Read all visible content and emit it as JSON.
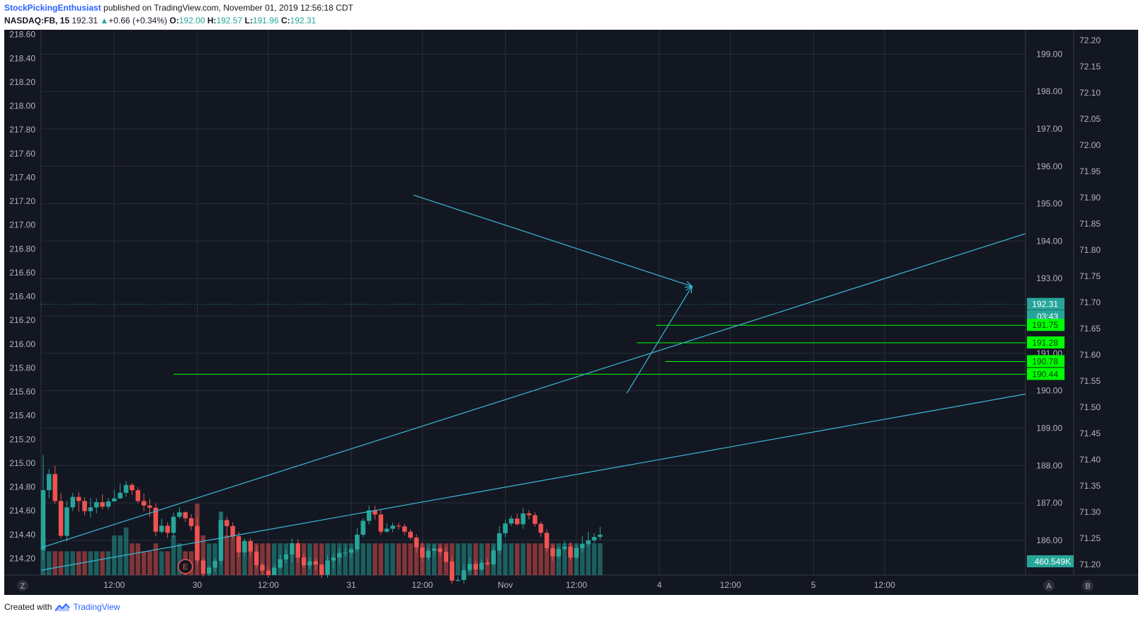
{
  "header": {
    "author": "StockPickingEnthusiast",
    "published": "published on TradingView.com, November 01, 2019 12:56:18 CDT",
    "symbol": "NASDAQ:FB, 15",
    "last": "192.31",
    "change_arrow": "▲",
    "change": "+0.66 (+0.34%)",
    "o_label": "O:",
    "o": "192.00",
    "h_label": "H:",
    "h": "192.57",
    "l_label": "L:",
    "l": "191.96",
    "c_label": "C:",
    "c": "192.31"
  },
  "footer": {
    "created": "Created with",
    "brand": "TradingView",
    "logo_icon": "tradingview-logo-icon"
  },
  "colors": {
    "background": "#131722",
    "up": "#26a69a",
    "down": "#ef5350",
    "trend": "#3bbad6",
    "level": "#00ff00",
    "grid": "#2a2e39",
    "axis_text": "#b2b5be"
  },
  "chart_data": {
    "type": "candlestick",
    "y_left": {
      "ticks": [
        "214.20",
        "214.40",
        "214.60",
        "214.80",
        "215.00",
        "215.20",
        "215.40",
        "215.60",
        "215.80",
        "216.00",
        "216.20",
        "216.40",
        "216.60",
        "216.80",
        "217.00",
        "217.20",
        "217.40",
        "217.60",
        "217.80",
        "218.00",
        "218.20",
        "218.40",
        "218.60"
      ],
      "range": [
        214.06,
        218.64
      ]
    },
    "y_right_main": {
      "ticks": [
        "186.00",
        "187.00",
        "188.00",
        "189.00",
        "190.00",
        "191.00",
        "192.00",
        "193.00",
        "194.00",
        "195.00",
        "196.00",
        "197.00",
        "198.00",
        "199.00"
      ],
      "range": [
        185.07,
        199.65
      ]
    },
    "y_right_secondary": {
      "ticks": [
        "71.20",
        "71.25",
        "71.30",
        "71.35",
        "71.40",
        "71.45",
        "71.50",
        "71.55",
        "71.60",
        "71.65",
        "71.70",
        "71.75",
        "71.80",
        "71.85",
        "71.90",
        "71.95",
        "72.00",
        "72.05",
        "72.10",
        "72.15",
        "72.20"
      ],
      "range": [
        71.18,
        72.22
      ]
    },
    "x_ticks": [
      {
        "label": "12:00",
        "t": 12
      },
      {
        "label": "30",
        "t": 26
      },
      {
        "label": "12:00",
        "t": 38
      },
      {
        "label": "31",
        "t": 52
      },
      {
        "label": "12:00",
        "t": 64
      },
      {
        "label": "Nov",
        "t": 78
      },
      {
        "label": "12:00",
        "t": 90
      },
      {
        "label": "4",
        "t": 104
      },
      {
        "label": "12:00",
        "t": 116
      },
      {
        "label": "5",
        "t": 130
      },
      {
        "label": "12:00",
        "t": 142
      }
    ],
    "x_range": [
      -0.35,
      165.8
    ],
    "candles": [
      [
        185.74,
        187.34,
        185.49,
        188.28,
        0.5
      ],
      [
        187.34,
        187.77,
        187.12,
        187.9,
        0.3
      ],
      [
        187.77,
        187.05,
        186.98,
        187.99,
        0.3
      ],
      [
        187.05,
        186.12,
        186.05,
        187.27,
        0.3
      ],
      [
        186.12,
        186.88,
        185.96,
        187.05,
        0.3
      ],
      [
        186.88,
        187.16,
        186.78,
        187.27,
        0.3
      ],
      [
        187.16,
        187.05,
        186.76,
        187.29,
        0.3
      ],
      [
        187.05,
        186.78,
        186.67,
        187.15,
        0.3
      ],
      [
        186.78,
        186.88,
        186.61,
        187.13,
        0.3
      ],
      [
        186.88,
        187.02,
        186.72,
        187.12,
        0.3
      ],
      [
        187.02,
        186.9,
        186.83,
        187.23,
        0.3
      ],
      [
        186.9,
        187.04,
        186.82,
        187.13,
        0.3
      ],
      [
        187.04,
        187.12,
        187.07,
        187.35,
        0.5
      ],
      [
        187.12,
        187.27,
        187.16,
        187.52,
        0.5
      ],
      [
        187.27,
        187.48,
        187.17,
        187.59,
        0.6
      ],
      [
        187.48,
        187.34,
        187.22,
        187.53,
        0.4
      ],
      [
        187.34,
        187.05,
        186.99,
        187.42,
        0.4
      ],
      [
        187.05,
        186.93,
        186.78,
        187.25,
        0.3
      ],
      [
        186.93,
        186.87,
        186.63,
        187.1,
        0.3
      ],
      [
        186.87,
        186.23,
        186.11,
        186.99,
        0.4
      ],
      [
        186.23,
        186.39,
        186.18,
        186.58,
        0.3
      ],
      [
        186.39,
        186.2,
        186.06,
        186.48,
        0.3
      ],
      [
        186.2,
        186.63,
        186.06,
        186.74,
        0.5
      ],
      [
        186.63,
        186.75,
        186.58,
        186.88,
        0.4
      ],
      [
        186.75,
        186.59,
        186.49,
        186.77,
        0.3
      ],
      [
        186.59,
        186.38,
        186.27,
        186.7,
        0.3
      ],
      [
        186.38,
        185.46,
        185.34,
        186.62,
        0.9
      ],
      [
        185.46,
        185.11,
        185.03,
        185.52,
        0.5
      ],
      [
        185.11,
        185.27,
        185.04,
        185.32,
        0.4
      ],
      [
        185.27,
        185.45,
        185.16,
        185.52,
        0.4
      ],
      [
        185.45,
        186.54,
        185.35,
        186.76,
        0.8
      ],
      [
        186.54,
        186.38,
        186.08,
        186.63,
        0.5
      ],
      [
        186.38,
        186.11,
        186.04,
        186.48,
        0.5
      ],
      [
        186.11,
        185.68,
        185.55,
        186.23,
        0.4
      ],
      [
        185.68,
        185.98,
        185.58,
        186.05,
        0.4
      ],
      [
        185.98,
        185.7,
        185.57,
        186.05,
        0.4
      ],
      [
        185.7,
        185.34,
        185.27,
        185.87,
        0.4
      ],
      [
        185.34,
        185.19,
        185.09,
        185.39,
        0.4
      ],
      [
        185.19,
        185.07,
        185.0,
        185.29,
        0.4
      ],
      [
        185.07,
        185.27,
        185.09,
        185.36,
        0.4
      ],
      [
        185.27,
        185.49,
        185.24,
        185.62,
        0.4
      ],
      [
        185.49,
        185.62,
        185.4,
        185.75,
        0.4
      ],
      [
        185.62,
        185.92,
        185.4,
        186.05,
        0.4
      ],
      [
        185.92,
        185.54,
        185.41,
        186.02,
        0.4
      ],
      [
        185.54,
        185.33,
        185.26,
        185.65,
        0.4
      ],
      [
        185.33,
        185.44,
        185.24,
        185.55,
        0.4
      ],
      [
        185.44,
        185.35,
        185.21,
        185.52,
        0.4
      ],
      [
        185.35,
        185.08,
        185.0,
        185.37,
        0.4
      ],
      [
        185.08,
        185.46,
        185.0,
        185.6,
        0.4
      ],
      [
        185.46,
        185.54,
        185.25,
        185.64,
        0.4
      ],
      [
        185.54,
        185.66,
        185.37,
        185.79,
        0.4
      ],
      [
        185.66,
        185.67,
        185.57,
        185.79,
        0.4
      ],
      [
        185.67,
        185.76,
        185.54,
        185.81,
        0.4
      ],
      [
        185.76,
        186.15,
        185.68,
        186.33,
        0.4
      ],
      [
        186.15,
        186.52,
        186.08,
        186.59,
        0.4
      ],
      [
        186.52,
        186.8,
        186.42,
        186.93,
        0.4
      ],
      [
        186.8,
        186.69,
        186.56,
        186.92,
        0.4
      ],
      [
        186.69,
        186.23,
        186.15,
        186.82,
        0.4
      ],
      [
        186.23,
        186.31,
        186.2,
        186.45,
        0.4
      ],
      [
        186.31,
        186.39,
        186.22,
        186.47,
        0.4
      ],
      [
        186.39,
        186.37,
        186.29,
        186.47,
        0.4
      ],
      [
        186.37,
        186.23,
        186.14,
        186.44,
        0.4
      ],
      [
        186.23,
        186.07,
        186.02,
        186.3,
        0.4
      ],
      [
        186.07,
        185.81,
        185.67,
        186.16,
        0.4
      ],
      [
        185.81,
        185.54,
        185.42,
        185.95,
        0.4
      ],
      [
        185.54,
        185.72,
        185.47,
        185.8,
        0.4
      ],
      [
        185.72,
        185.78,
        185.58,
        185.88,
        0.4
      ],
      [
        185.78,
        185.69,
        185.56,
        185.87,
        0.4
      ],
      [
        185.69,
        185.43,
        185.4,
        185.81,
        0.4
      ],
      [
        185.43,
        184.92,
        184.84,
        185.57,
        0.4
      ],
      [
        184.92,
        184.94,
        184.89,
        185.03,
        0.4
      ],
      [
        184.94,
        185.2,
        184.85,
        185.35,
        0.4
      ],
      [
        185.2,
        185.37,
        185.15,
        185.54,
        0.4
      ],
      [
        185.37,
        185.22,
        185.07,
        185.45,
        0.4
      ],
      [
        185.22,
        185.4,
        185.17,
        185.48,
        0.4
      ],
      [
        185.4,
        185.36,
        185.33,
        185.5,
        0.4
      ],
      [
        185.36,
        185.73,
        185.34,
        185.85,
        0.4
      ],
      [
        185.73,
        186.19,
        185.65,
        186.38,
        0.4
      ],
      [
        186.19,
        186.45,
        186.08,
        186.55,
        0.4
      ],
      [
        186.45,
        186.58,
        186.38,
        186.66,
        0.4
      ],
      [
        186.58,
        186.43,
        186.39,
        186.72,
        0.4
      ],
      [
        186.43,
        186.72,
        186.31,
        186.86,
        0.4
      ],
      [
        186.72,
        186.67,
        186.56,
        186.8,
        0.4
      ],
      [
        186.67,
        186.44,
        186.36,
        186.75,
        0.4
      ],
      [
        186.44,
        186.2,
        186.09,
        186.5,
        0.4
      ],
      [
        186.2,
        185.79,
        185.7,
        186.29,
        0.4
      ],
      [
        185.79,
        185.57,
        185.45,
        185.88,
        0.4
      ],
      [
        185.57,
        185.77,
        185.5,
        185.82,
        0.4
      ],
      [
        185.77,
        185.83,
        185.71,
        185.99,
        0.4
      ],
      [
        185.83,
        185.54,
        185.47,
        185.95,
        0.4
      ],
      [
        185.54,
        185.79,
        185.5,
        185.85,
        0.4
      ],
      [
        185.79,
        185.9,
        185.68,
        186.11,
        0.4
      ],
      [
        185.9,
        186.0,
        185.83,
        186.23,
        0.4
      ],
      [
        186.0,
        186.09,
        185.92,
        186.19,
        0.4
      ],
      [
        186.09,
        186.15,
        186.01,
        186.36,
        0.4
      ]
    ],
    "candle_note": "each candle = [open, close, low, high, volume_relative]",
    "trendlines": [
      {
        "from": [
          -0.35,
          185.8
        ],
        "to": [
          165.8,
          194.2
        ]
      },
      {
        "from": [
          -0.35,
          185.2
        ],
        "to": [
          165.8,
          189.91
        ]
      },
      {
        "from": [
          62.5,
          195.23
        ],
        "to": [
          109.5,
          192.79
        ],
        "arrow": true
      },
      {
        "from": [
          98.5,
          189.93
        ],
        "to": [
          109.5,
          192.79
        ],
        "arrow": true
      }
    ],
    "hlines": [
      {
        "value": 191.75,
        "x_start": 103.4
      },
      {
        "value": 191.28,
        "x_start": 100.2
      },
      {
        "value": 190.78,
        "x_start": 105.0
      },
      {
        "value": 190.44,
        "x_start": 22.0
      }
    ],
    "last_price_line": 192.31,
    "price_labels": [
      {
        "text": "192.31",
        "value": 192.31,
        "style": "teal"
      },
      {
        "text": "03:43",
        "value": 191.98,
        "style": "teal"
      },
      {
        "text": "191.75",
        "value": 191.75,
        "style": "green"
      },
      {
        "text": "191.28",
        "value": 191.28,
        "style": "green"
      },
      {
        "text": "190.78",
        "value": 190.78,
        "style": "green"
      },
      {
        "text": "190.44",
        "value": 190.44,
        "style": "green"
      }
    ],
    "volume_label": "460.549K",
    "earnings_marker": {
      "label": "E",
      "t": 24
    },
    "bottom_buttons": {
      "left": "Z",
      "mid": "A",
      "right": "B"
    }
  }
}
